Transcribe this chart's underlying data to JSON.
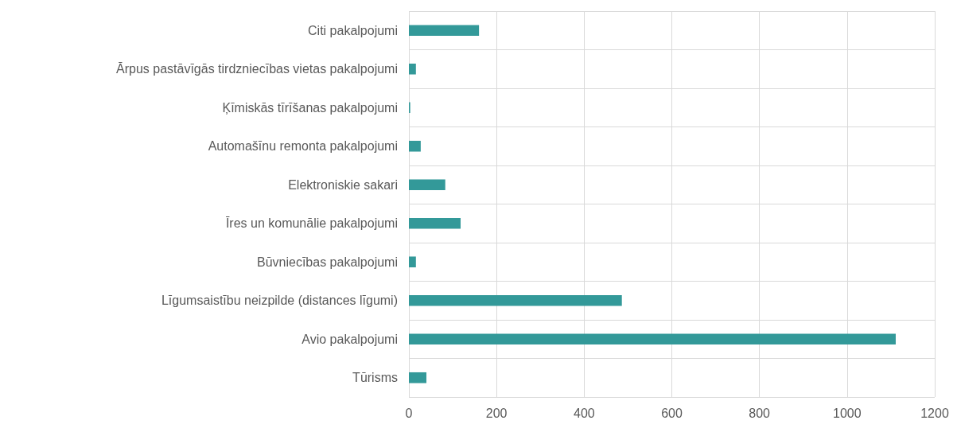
{
  "chart_data": {
    "type": "bar",
    "orientation": "horizontal",
    "categories": [
      "Citi pakalpojumi",
      "Ārpus pastāvīgās tirdzniecības vietas pakalpojumi",
      "Ķīmiskās tīrīšanas pakalpojumi",
      "Automašīnu remonta pakalpojumi",
      "Elektroniskie sakari",
      "Īres un komunālie pakalpojumi",
      "Būvniecības pakalpojumi",
      "Līgumsaistību neizpilde (distances līgumi)",
      "Avio pakalpojumi",
      "Tūrisms"
    ],
    "values": [
      160,
      16,
      3,
      27,
      83,
      118,
      16,
      486,
      1111,
      40
    ],
    "color": "#339999",
    "xlim": [
      0,
      1200
    ],
    "xticks": [
      0,
      200,
      400,
      600,
      800,
      1000,
      1200
    ],
    "grid": true
  }
}
